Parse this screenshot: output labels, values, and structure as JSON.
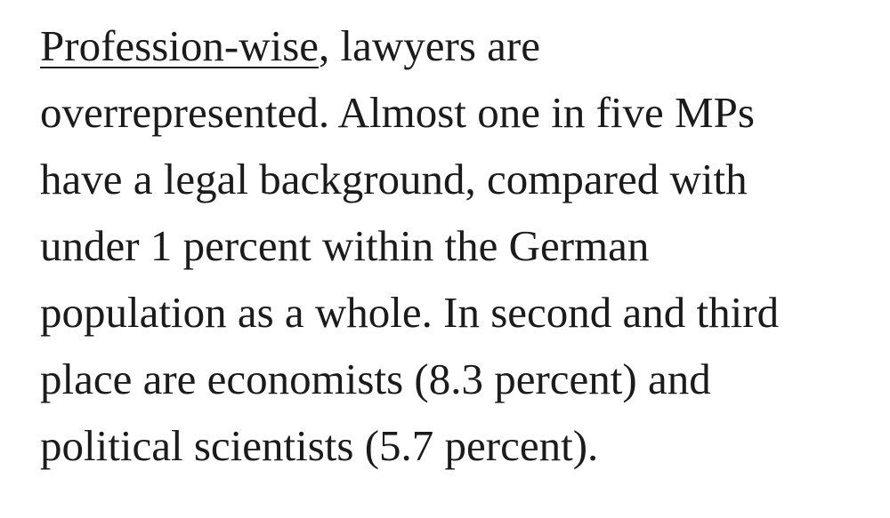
{
  "paragraph": {
    "link": "Profession-wise",
    "lines": [
      ", lawyers are",
      "overrepresented. Almost one in five MPs",
      "have a legal background, compared with",
      "under 1 percent within the German",
      "population as a whole. In second and third",
      "place are economists (8.3 percent) and",
      "political scientists (5.7 percent)."
    ]
  }
}
